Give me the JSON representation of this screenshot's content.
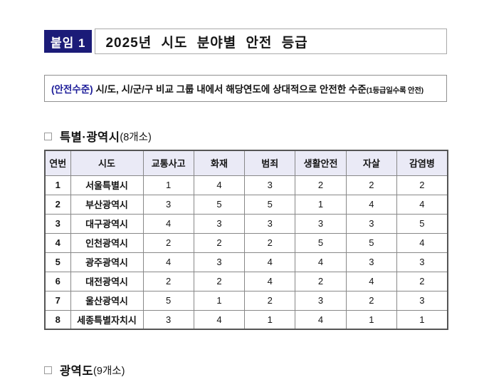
{
  "document": {
    "badge_label": "붙임 1",
    "title": "2025년 시도 분야별 안전 등급"
  },
  "notice": {
    "label": "(안전수준)",
    "body": " 시/도, 시/군/구 비교 그룹 내에서 해당연도에 상대적으로 안전한 수준",
    "suffix": "(1등급일수록 안전)"
  },
  "sections": {
    "metropolitan": {
      "title": "특별·광역시",
      "count": "(8개소)"
    },
    "provinces": {
      "title": "광역도",
      "count": "(9개소)"
    }
  },
  "table": {
    "headers": [
      "연번",
      "시도",
      "교통사고",
      "화재",
      "범죄",
      "생활안전",
      "자살",
      "감염병"
    ],
    "rows": [
      {
        "no": "1",
        "sido": "서울특별시",
        "values": [
          "1",
          "4",
          "3",
          "2",
          "2",
          "2"
        ]
      },
      {
        "no": "2",
        "sido": "부산광역시",
        "values": [
          "3",
          "5",
          "5",
          "1",
          "4",
          "4"
        ]
      },
      {
        "no": "3",
        "sido": "대구광역시",
        "values": [
          "4",
          "3",
          "3",
          "3",
          "3",
          "5"
        ]
      },
      {
        "no": "4",
        "sido": "인천광역시",
        "values": [
          "2",
          "2",
          "2",
          "5",
          "5",
          "4"
        ]
      },
      {
        "no": "5",
        "sido": "광주광역시",
        "values": [
          "4",
          "3",
          "4",
          "4",
          "3",
          "3"
        ]
      },
      {
        "no": "6",
        "sido": "대전광역시",
        "values": [
          "2",
          "2",
          "4",
          "2",
          "4",
          "2"
        ]
      },
      {
        "no": "7",
        "sido": "울산광역시",
        "values": [
          "5",
          "1",
          "2",
          "3",
          "2",
          "3"
        ]
      },
      {
        "no": "8",
        "sido": "세종특별자치시",
        "values": [
          "3",
          "4",
          "1",
          "4",
          "1",
          "1"
        ]
      }
    ]
  },
  "colors": {
    "badge_navy": "#1b1b78",
    "notice_label_blue": "#1c1c99",
    "table_header_bg": "#eaeaf6",
    "table_border_inner": "#888888",
    "table_border_outer": "#555555"
  }
}
